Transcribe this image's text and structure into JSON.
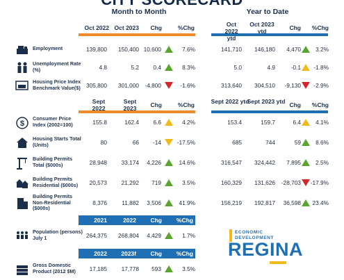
{
  "title": "CITY SCORECARD",
  "sections": {
    "month": "Month to Month",
    "ytd": "Year to Date"
  },
  "headers": {
    "monthly": [
      "Oct 2022",
      "Oct 2023",
      "Chg",
      "%Chg"
    ],
    "ytd_1": [
      "Oct 2022 ytd",
      "Oct 2023 ytd",
      "Chg",
      "%Chg"
    ],
    "sept": [
      "Sept 2022",
      "Sept 2023",
      "Chg",
      "%Chg"
    ],
    "sept_ytd": [
      "Sept 2022 ytd",
      "Sept 2023 ytd",
      "Chg",
      "%Chg"
    ],
    "annual": [
      "2021",
      "2022",
      "Chg",
      "%Chg"
    ],
    "annual_f": [
      "2022",
      "2023f",
      "Chg",
      "%Chg"
    ]
  },
  "rows": [
    {
      "label": "Employment",
      "icon": "cash-register-icon",
      "m": [
        "139,800",
        "150,400",
        "10,600",
        "7.6%"
      ],
      "m_ind": "up",
      "y": [
        "141,710",
        "146,180",
        "4,470",
        "3.2%"
      ],
      "y_ind": "up"
    },
    {
      "label": "Unemployment Rate (%)",
      "icon": "people-icon",
      "m": [
        "4.8",
        "5.2",
        "0.4",
        "8.3%"
      ],
      "m_ind": "up",
      "y": [
        "5.0",
        "4.9",
        "-0.1",
        "-1.8%"
      ],
      "y_ind": "up-y"
    },
    {
      "label": "Housing Price Index Benchmark Value($)",
      "icon": "price-tag-icon",
      "m": [
        "305,800",
        "301,000",
        "-4,800",
        "-1.6%"
      ],
      "m_ind": "down",
      "y": [
        "313,640",
        "304,510",
        "-9,130",
        "-2.9%"
      ],
      "y_ind": "down"
    },
    {
      "label": "Consumer Price Index (2002=100)",
      "icon": "dollar-coin-icon",
      "m": [
        "155.8",
        "162.4",
        "6.6",
        "4.2%"
      ],
      "m_ind": "up-y",
      "y": [
        "153.4",
        "159.7",
        "6.4",
        "4.1%"
      ],
      "y_ind": "up-y"
    },
    {
      "label": "Housing Starts Total (Units)",
      "icon": "house-icon",
      "m": [
        "80",
        "66",
        "-14",
        "-17.5%"
      ],
      "m_ind": "dn-y",
      "y": [
        "685",
        "744",
        "59",
        "8.6%"
      ],
      "y_ind": "up"
    },
    {
      "label": "Building Permits Total ($000s)",
      "icon": "crane-icon",
      "m": [
        "28,948",
        "33,174",
        "4,226",
        "14.6%"
      ],
      "m_ind": "up",
      "y": [
        "316,547",
        "324,442",
        "7,895",
        "2.5%"
      ],
      "y_ind": "up"
    },
    {
      "label": "Building Permits Residential ($000s)",
      "icon": "houses-icon",
      "m": [
        "20,573",
        "21,292",
        "719",
        "3.5%"
      ],
      "m_ind": "up",
      "y": [
        "160,329",
        "131,626",
        "-28,703",
        "-17.9%"
      ],
      "y_ind": "down"
    },
    {
      "label": "Building Permits Non-Residential ($000s)",
      "icon": "office-building-icon",
      "m": [
        "8,376",
        "11,882",
        "3,506",
        "41.9%"
      ],
      "m_ind": "up",
      "y": [
        "156,219",
        "192,817",
        "36,598",
        "23.4%"
      ],
      "y_ind": "up"
    },
    {
      "label": "Population (persons) July 1",
      "icon": "crowd-icon",
      "m": [
        "264,375",
        "268,804",
        "4,429",
        "1.7%"
      ],
      "m_ind": "up"
    },
    {
      "label": "Gross Domestic Product (2012 $M)",
      "icon": "money-stack-icon",
      "m": [
        "17,185",
        "17,778",
        "593",
        "3.5%"
      ],
      "m_ind": "up"
    }
  ],
  "logo": {
    "line1": "ECONOMIC",
    "line2": "DEVELOPMENT",
    "main": "REGINA"
  },
  "colors": {
    "orange": "#ef8a2a",
    "blue": "#1f6fb5",
    "up": "#5aa52e",
    "down": "#d3262b",
    "neutral": "#f0b91c"
  }
}
